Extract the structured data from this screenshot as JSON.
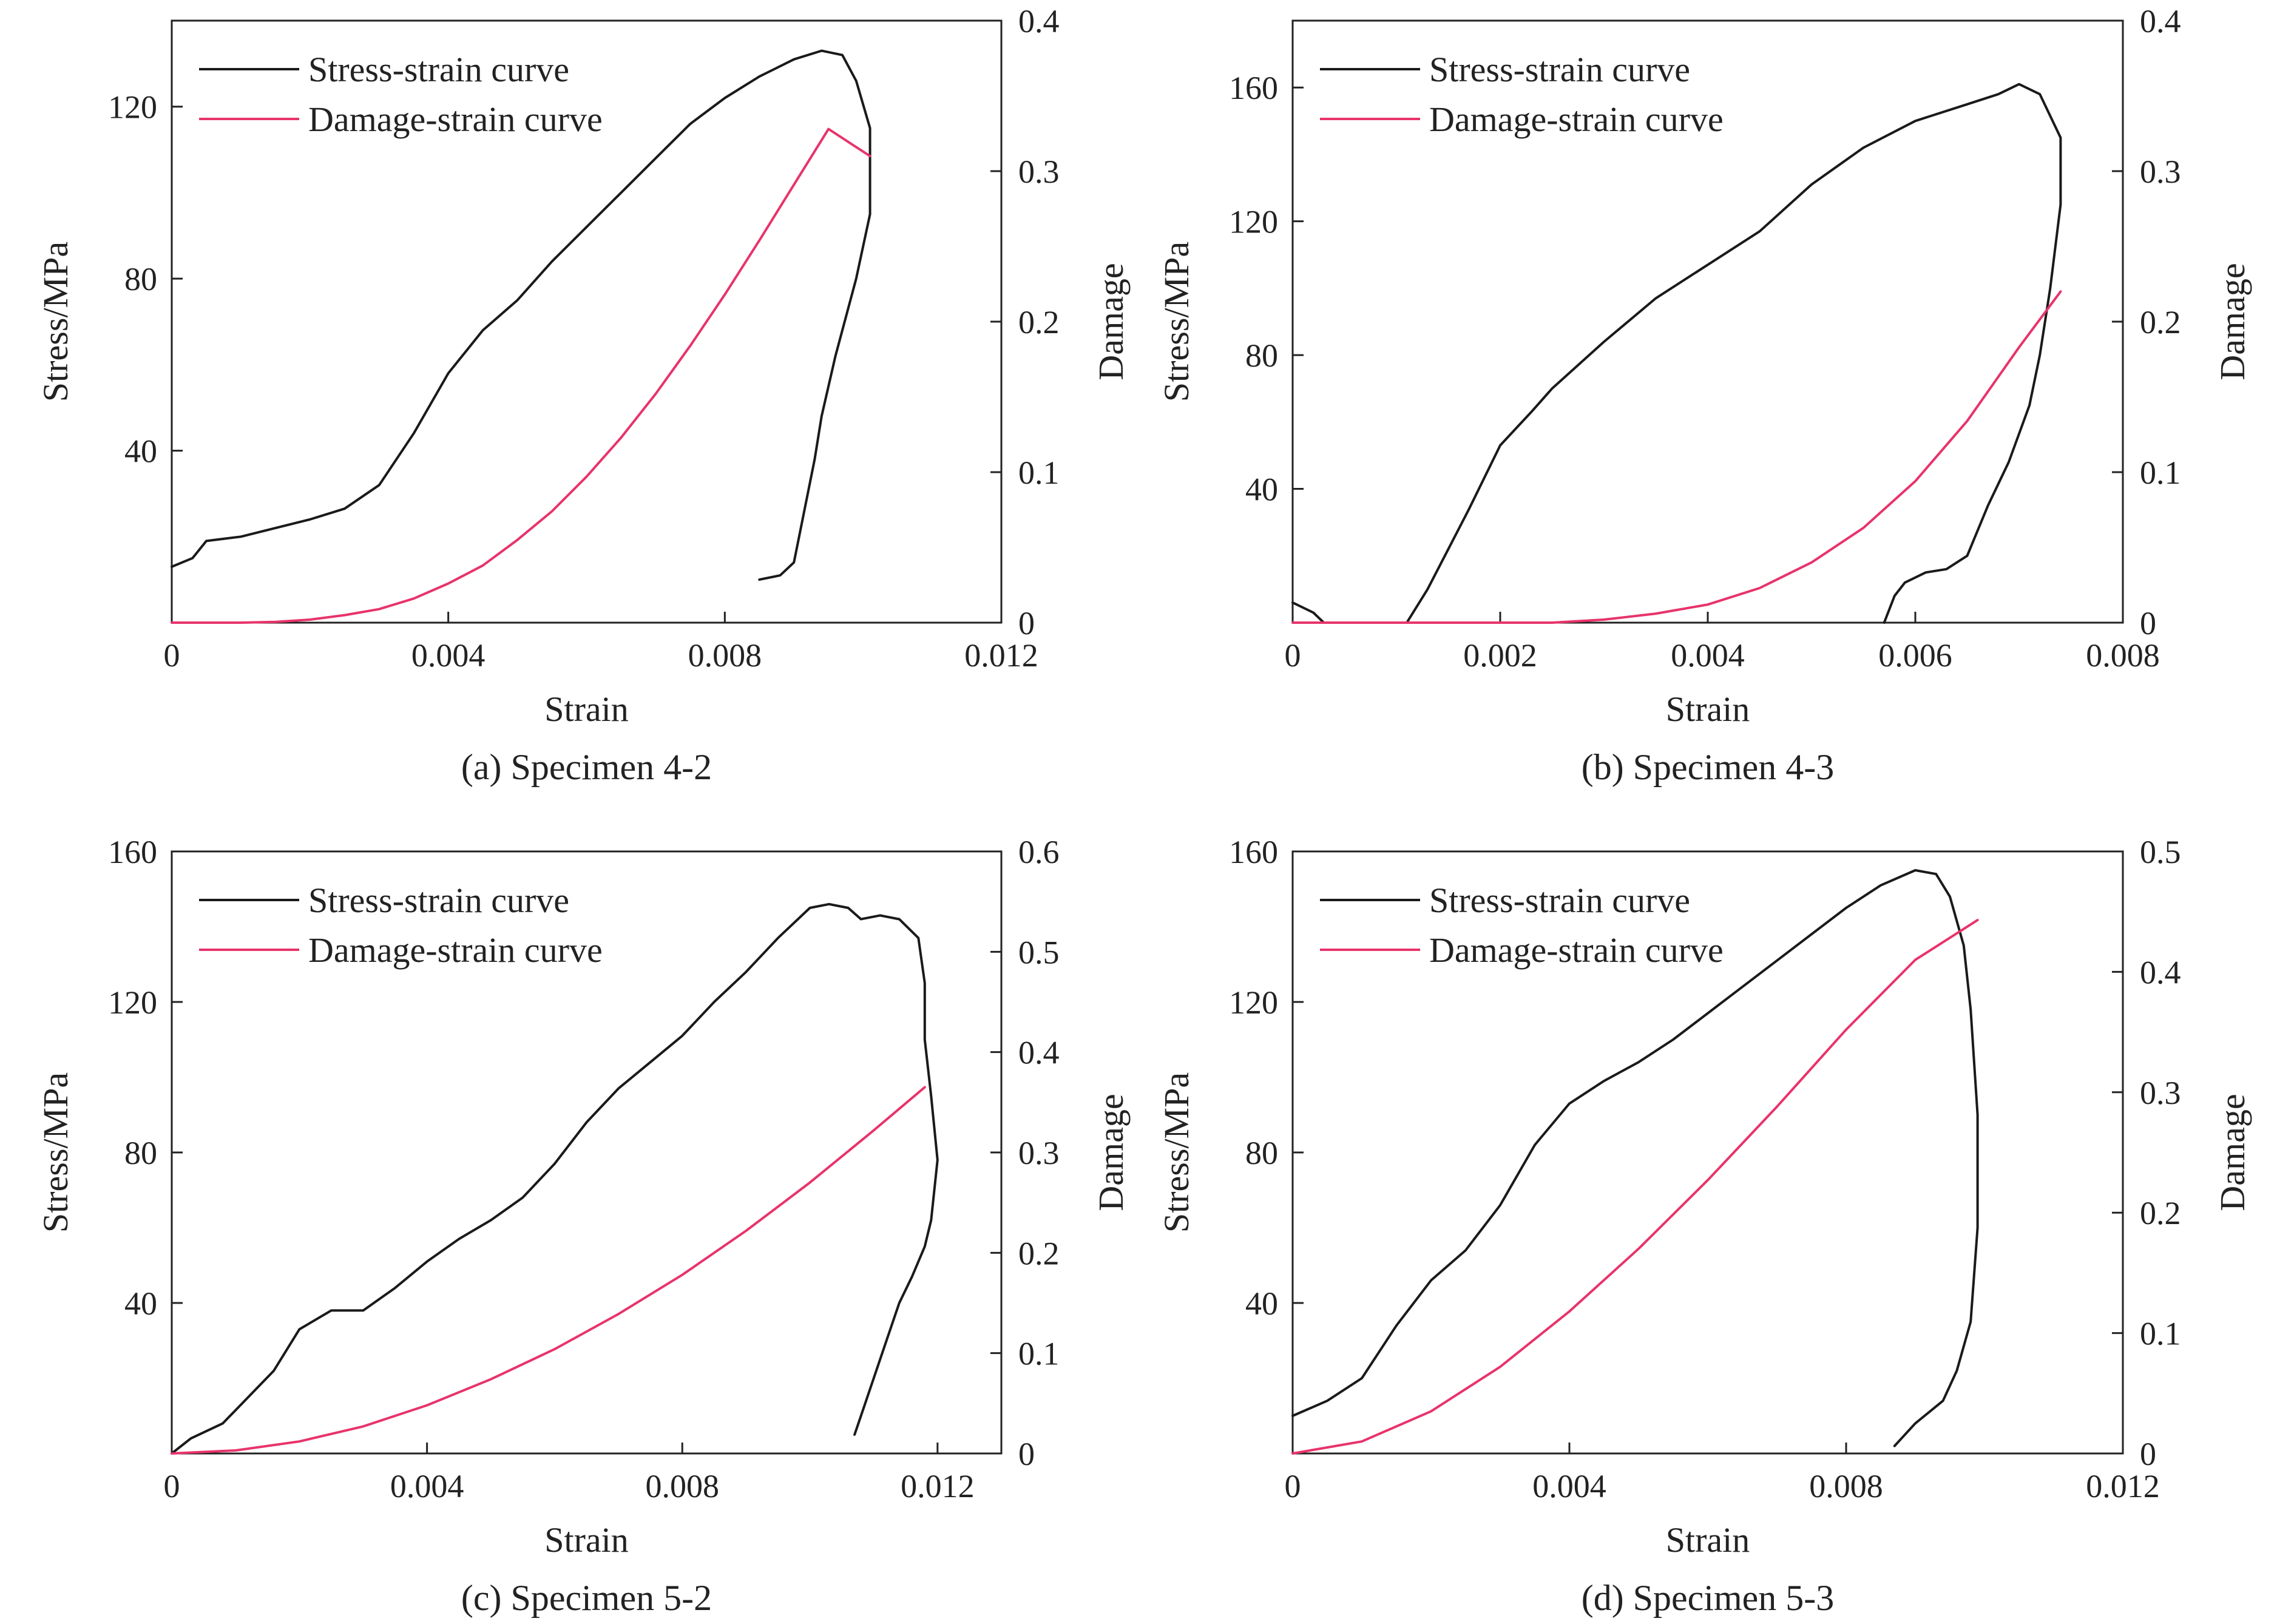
{
  "figure": {
    "background": "#ffffff",
    "frame_color": "#222222"
  },
  "colors": {
    "stress_curve": "#1a1a1a",
    "damage_curve": "#e8336b"
  },
  "chart_data": [
    {
      "type": "line",
      "panel_label": "(a) Specimen 4-2",
      "xlabel": "Strain",
      "ylabel": "Stress/MPa",
      "y2label": "Damage",
      "xlim": [
        0,
        0.012
      ],
      "ylim": [
        0,
        140
      ],
      "y2lim": [
        0,
        0.4
      ],
      "xticks": [
        0,
        0.004,
        0.008,
        0.012
      ],
      "xtick_labels": [
        "0",
        "0.004",
        "0.008",
        "0.012"
      ],
      "yticks": [
        40,
        80,
        120
      ],
      "ytick_labels": [
        "40",
        "80",
        "120"
      ],
      "y2ticks": [
        0,
        0.1,
        0.2,
        0.3,
        0.4
      ],
      "y2tick_labels": [
        "0",
        "0.1",
        "0.2",
        "0.3",
        "0.4"
      ],
      "legend": [
        "Stress-strain curve",
        "Damage-strain curve"
      ],
      "legend_position": "top-left",
      "series": [
        {
          "name": "Stress-strain curve",
          "axis": "left",
          "points": [
            [
              0,
              13
            ],
            [
              0.0003,
              15
            ],
            [
              0.0005,
              19
            ],
            [
              0.001,
              20
            ],
            [
              0.0015,
              22
            ],
            [
              0.002,
              24
            ],
            [
              0.0025,
              26.5
            ],
            [
              0.003,
              32
            ],
            [
              0.0035,
              44
            ],
            [
              0.004,
              58
            ],
            [
              0.0045,
              68
            ],
            [
              0.005,
              75
            ],
            [
              0.0055,
              84
            ],
            [
              0.006,
              92
            ],
            [
              0.0065,
              100
            ],
            [
              0.007,
              108
            ],
            [
              0.0075,
              116
            ],
            [
              0.008,
              122
            ],
            [
              0.0085,
              127
            ],
            [
              0.009,
              131
            ],
            [
              0.0094,
              133
            ],
            [
              0.0097,
              132
            ],
            [
              0.0099,
              126
            ],
            [
              0.0101,
              115
            ],
            [
              0.0101,
              95
            ],
            [
              0.0099,
              80
            ],
            [
              0.0096,
              62
            ],
            [
              0.0094,
              48
            ],
            [
              0.0093,
              38
            ],
            [
              0.0091,
              22
            ],
            [
              0.009,
              14
            ],
            [
              0.0088,
              11
            ],
            [
              0.0085,
              10
            ]
          ]
        },
        {
          "name": "Damage-strain curve",
          "axis": "right",
          "points": [
            [
              0,
              0
            ],
            [
              0.001,
              0
            ],
            [
              0.0015,
              0.0005
            ],
            [
              0.002,
              0.002
            ],
            [
              0.0025,
              0.005
            ],
            [
              0.003,
              0.009
            ],
            [
              0.0035,
              0.016
            ],
            [
              0.004,
              0.026
            ],
            [
              0.0045,
              0.038
            ],
            [
              0.005,
              0.055
            ],
            [
              0.0055,
              0.074
            ],
            [
              0.006,
              0.097
            ],
            [
              0.0065,
              0.123
            ],
            [
              0.007,
              0.152
            ],
            [
              0.0075,
              0.184
            ],
            [
              0.008,
              0.218
            ],
            [
              0.0085,
              0.254
            ],
            [
              0.009,
              0.291
            ],
            [
              0.0095,
              0.328
            ],
            [
              0.0101,
              0.31
            ]
          ]
        }
      ]
    },
    {
      "type": "line",
      "panel_label": "(b) Specimen 4-3",
      "xlabel": "Strain",
      "ylabel": "Stress/MPa",
      "y2label": "Damage",
      "xlim": [
        0,
        0.008
      ],
      "ylim": [
        0,
        180
      ],
      "y2lim": [
        0,
        0.4
      ],
      "xticks": [
        0,
        0.002,
        0.004,
        0.006,
        0.008
      ],
      "xtick_labels": [
        "0",
        "0.002",
        "0.004",
        "0.006",
        "0.008"
      ],
      "yticks": [
        40,
        80,
        120,
        160
      ],
      "ytick_labels": [
        "40",
        "80",
        "120",
        "160"
      ],
      "y2ticks": [
        0,
        0.1,
        0.2,
        0.3,
        0.4
      ],
      "y2tick_labels": [
        "0",
        "0.1",
        "0.2",
        "0.3",
        "0.4"
      ],
      "legend": [
        "Stress-strain curve",
        "Damage-strain curve"
      ],
      "legend_position": "top-left",
      "series": [
        {
          "name": "Stress-strain curve",
          "axis": "left",
          "points": [
            [
              0,
              6
            ],
            [
              0.0002,
              3
            ],
            [
              0.0003,
              0
            ],
            [
              0.001,
              0
            ],
            [
              0.0011,
              0
            ],
            [
              0.0013,
              10
            ],
            [
              0.0015,
              22
            ],
            [
              0.0017,
              34
            ],
            [
              0.002,
              53
            ],
            [
              0.0023,
              63
            ],
            [
              0.0025,
              70
            ],
            [
              0.003,
              84
            ],
            [
              0.0035,
              97
            ],
            [
              0.004,
              107
            ],
            [
              0.0045,
              117
            ],
            [
              0.005,
              131
            ],
            [
              0.0055,
              142
            ],
            [
              0.006,
              150
            ],
            [
              0.0065,
              155
            ],
            [
              0.0068,
              158
            ],
            [
              0.007,
              161
            ],
            [
              0.0072,
              158
            ],
            [
              0.0074,
              145
            ],
            [
              0.0074,
              125
            ],
            [
              0.0073,
              100
            ],
            [
              0.0072,
              80
            ],
            [
              0.0071,
              65
            ],
            [
              0.0069,
              48
            ],
            [
              0.0067,
              35
            ],
            [
              0.0065,
              20
            ],
            [
              0.0063,
              16
            ],
            [
              0.0061,
              15
            ],
            [
              0.0059,
              12
            ],
            [
              0.0058,
              8
            ],
            [
              0.0057,
              0
            ]
          ]
        },
        {
          "name": "Damage-strain curve",
          "axis": "right",
          "points": [
            [
              0,
              0
            ],
            [
              0.0025,
              0
            ],
            [
              0.003,
              0.002
            ],
            [
              0.0035,
              0.006
            ],
            [
              0.004,
              0.012
            ],
            [
              0.0045,
              0.023
            ],
            [
              0.005,
              0.04
            ],
            [
              0.0055,
              0.063
            ],
            [
              0.006,
              0.094
            ],
            [
              0.0065,
              0.134
            ],
            [
              0.007,
              0.183
            ],
            [
              0.0074,
              0.22
            ]
          ]
        }
      ]
    },
    {
      "type": "line",
      "panel_label": "(c) Specimen 5-2",
      "xlabel": "Strain",
      "ylabel": "Stress/MPa",
      "y2label": "Damage",
      "xlim": [
        0,
        0.013
      ],
      "ylim": [
        0,
        160
      ],
      "y2lim": [
        0,
        0.6
      ],
      "xticks": [
        0,
        0.004,
        0.008,
        0.012
      ],
      "xtick_labels": [
        "0",
        "0.004",
        "0.008",
        "0.012"
      ],
      "yticks": [
        40,
        80,
        120,
        160
      ],
      "ytick_labels": [
        "40",
        "80",
        "120",
        "160"
      ],
      "y2ticks": [
        0,
        0.1,
        0.2,
        0.3,
        0.4,
        0.5,
        0.6
      ],
      "y2tick_labels": [
        "0",
        "0.1",
        "0.2",
        "0.3",
        "0.4",
        "0.5",
        "0.6"
      ],
      "legend": [
        "Stress-strain curve",
        "Damage-strain curve"
      ],
      "legend_position": "top-left",
      "series": [
        {
          "name": "Stress-strain curve",
          "axis": "left",
          "points": [
            [
              0,
              0
            ],
            [
              0.0003,
              4
            ],
            [
              0.0008,
              8
            ],
            [
              0.0012,
              15
            ],
            [
              0.0016,
              22
            ],
            [
              0.002,
              33
            ],
            [
              0.0025,
              38
            ],
            [
              0.003,
              38
            ],
            [
              0.0035,
              44
            ],
            [
              0.004,
              51
            ],
            [
              0.0045,
              57
            ],
            [
              0.005,
              62
            ],
            [
              0.0055,
              68
            ],
            [
              0.006,
              77
            ],
            [
              0.0065,
              88
            ],
            [
              0.007,
              97
            ],
            [
              0.0075,
              104
            ],
            [
              0.008,
              111
            ],
            [
              0.0085,
              120
            ],
            [
              0.009,
              128
            ],
            [
              0.0095,
              137
            ],
            [
              0.01,
              145
            ],
            [
              0.0103,
              146
            ],
            [
              0.0106,
              145
            ],
            [
              0.0108,
              142
            ],
            [
              0.0111,
              143
            ],
            [
              0.0114,
              142
            ],
            [
              0.0117,
              137
            ],
            [
              0.0118,
              125
            ],
            [
              0.0118,
              110
            ],
            [
              0.0119,
              95
            ],
            [
              0.012,
              78
            ],
            [
              0.0119,
              62
            ],
            [
              0.0118,
              55
            ],
            [
              0.0116,
              47
            ],
            [
              0.0114,
              40
            ],
            [
              0.0112,
              30
            ],
            [
              0.011,
              20
            ],
            [
              0.0108,
              10
            ],
            [
              0.0107,
              5
            ]
          ]
        },
        {
          "name": "Damage-strain curve",
          "axis": "right",
          "points": [
            [
              0,
              0
            ],
            [
              0.001,
              0.003
            ],
            [
              0.002,
              0.012
            ],
            [
              0.003,
              0.027
            ],
            [
              0.004,
              0.048
            ],
            [
              0.005,
              0.074
            ],
            [
              0.006,
              0.104
            ],
            [
              0.007,
              0.139
            ],
            [
              0.008,
              0.178
            ],
            [
              0.009,
              0.222
            ],
            [
              0.01,
              0.27
            ],
            [
              0.011,
              0.322
            ],
            [
              0.0118,
              0.365
            ]
          ]
        }
      ]
    },
    {
      "type": "line",
      "panel_label": "(d) Specimen 5-3",
      "xlabel": "Strain",
      "ylabel": "Stress/MPa",
      "y2label": "Damage",
      "xlim": [
        0,
        0.012
      ],
      "ylim": [
        0,
        160
      ],
      "y2lim": [
        0,
        0.5
      ],
      "xticks": [
        0,
        0.004,
        0.008,
        0.012
      ],
      "xtick_labels": [
        "0",
        "0.004",
        "0.008",
        "0.012"
      ],
      "yticks": [
        40,
        80,
        120,
        160
      ],
      "ytick_labels": [
        "40",
        "80",
        "120",
        "160"
      ],
      "y2ticks": [
        0,
        0.1,
        0.2,
        0.3,
        0.4,
        0.5
      ],
      "y2tick_labels": [
        "0",
        "0.1",
        "0.2",
        "0.3",
        "0.4",
        "0.5"
      ],
      "legend": [
        "Stress-strain curve",
        "Damage-strain curve"
      ],
      "legend_position": "top-left",
      "series": [
        {
          "name": "Stress-strain curve",
          "axis": "left",
          "points": [
            [
              0,
              10
            ],
            [
              0.0005,
              14
            ],
            [
              0.001,
              20
            ],
            [
              0.0015,
              34
            ],
            [
              0.002,
              46
            ],
            [
              0.0025,
              54
            ],
            [
              0.003,
              66
            ],
            [
              0.0035,
              82
            ],
            [
              0.004,
              93
            ],
            [
              0.0045,
              99
            ],
            [
              0.005,
              104
            ],
            [
              0.0055,
              110
            ],
            [
              0.006,
              117
            ],
            [
              0.0065,
              124
            ],
            [
              0.007,
              131
            ],
            [
              0.0075,
              138
            ],
            [
              0.008,
              145
            ],
            [
              0.0085,
              151
            ],
            [
              0.009,
              155
            ],
            [
              0.0093,
              154
            ],
            [
              0.0095,
              148
            ],
            [
              0.0097,
              135
            ],
            [
              0.0098,
              118
            ],
            [
              0.0099,
              90
            ],
            [
              0.0099,
              60
            ],
            [
              0.0098,
              35
            ],
            [
              0.0096,
              22
            ],
            [
              0.0094,
              14
            ],
            [
              0.0092,
              11
            ],
            [
              0.009,
              8
            ],
            [
              0.0088,
              4
            ],
            [
              0.0087,
              2
            ]
          ]
        },
        {
          "name": "Damage-strain curve",
          "axis": "right",
          "points": [
            [
              0,
              0
            ],
            [
              0.001,
              0.01
            ],
            [
              0.002,
              0.035
            ],
            [
              0.003,
              0.072
            ],
            [
              0.004,
              0.118
            ],
            [
              0.005,
              0.17
            ],
            [
              0.006,
              0.227
            ],
            [
              0.007,
              0.288
            ],
            [
              0.008,
              0.352
            ],
            [
              0.009,
              0.41
            ],
            [
              0.0099,
              0.443
            ]
          ]
        }
      ]
    }
  ]
}
